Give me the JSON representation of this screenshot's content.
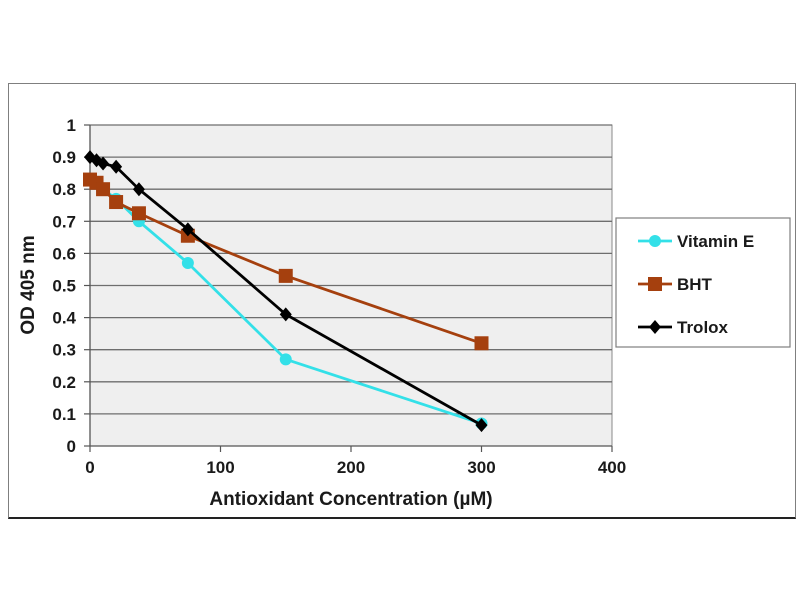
{
  "chart_data": {
    "type": "line",
    "title": "",
    "xlabel": "Antioxidant Concentration (µM)",
    "ylabel": "OD 405 nm",
    "xlim": [
      0,
      400
    ],
    "ylim": [
      0,
      1
    ],
    "xticks": [
      0,
      100,
      200,
      300,
      400
    ],
    "xtick_labels": [
      "0",
      "100",
      "200",
      "300",
      "400"
    ],
    "yticks": [
      0,
      0.1,
      0.2,
      0.3,
      0.4,
      0.5,
      0.6,
      0.7,
      0.8,
      0.9,
      1
    ],
    "ytick_labels": [
      "0",
      "0.1",
      "0.2",
      "0.3",
      "0.4",
      "0.5",
      "0.6",
      "0.7",
      "0.8",
      "0.9",
      "1"
    ],
    "grid": "horizontal",
    "legend_position": "right",
    "series": [
      {
        "name": "Vitamin E",
        "color": "#33e0e8",
        "marker": "circle",
        "x": [
          0,
          5,
          10,
          20,
          37.5,
          75,
          150,
          300
        ],
        "values": [
          0.83,
          0.82,
          0.8,
          0.77,
          0.7,
          0.57,
          0.27,
          0.07
        ]
      },
      {
        "name": "BHT",
        "color": "#a5400e",
        "marker": "square",
        "x": [
          0,
          5,
          10,
          20,
          37.5,
          75,
          150,
          300
        ],
        "values": [
          0.83,
          0.82,
          0.8,
          0.76,
          0.725,
          0.655,
          0.53,
          0.32
        ]
      },
      {
        "name": "Trolox",
        "color": "#000000",
        "marker": "diamond",
        "x": [
          0,
          5,
          10,
          20,
          37.5,
          75,
          150,
          300
        ],
        "values": [
          0.9,
          0.89,
          0.88,
          0.87,
          0.8,
          0.675,
          0.41,
          0.065
        ]
      }
    ]
  }
}
